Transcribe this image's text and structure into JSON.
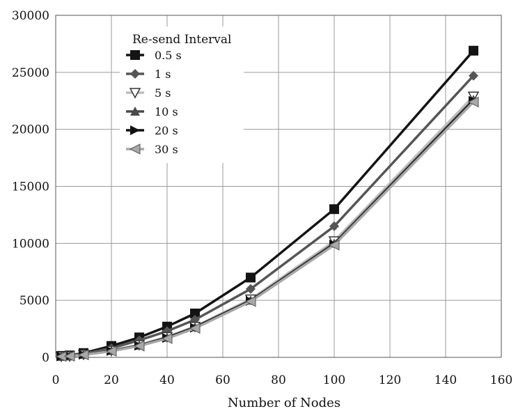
{
  "chart_data": {
    "type": "line",
    "title": "",
    "xlabel": "Number of Nodes",
    "ylabel": "",
    "xlim": [
      0,
      160
    ],
    "ylim": [
      0,
      30000
    ],
    "xticks": [
      0,
      20,
      40,
      60,
      80,
      100,
      120,
      140,
      160
    ],
    "yticks": [
      0,
      5000,
      10000,
      15000,
      20000,
      25000,
      30000
    ],
    "grid": true,
    "legend": {
      "title": "Re-send Interval",
      "position": "top-left"
    },
    "series": [
      {
        "name": "0.5 s",
        "color": "#141414",
        "marker": "square",
        "x": [
          2,
          5,
          10,
          20,
          30,
          40,
          50,
          70,
          100,
          150
        ],
        "y": [
          130,
          170,
          380,
          1000,
          1750,
          2700,
          3850,
          7000,
          13000,
          26900
        ]
      },
      {
        "name": "1 s",
        "color": "#555555",
        "marker": "diamond",
        "x": [
          2,
          5,
          10,
          20,
          30,
          40,
          50,
          70,
          100,
          150
        ],
        "y": [
          110,
          140,
          320,
          800,
          1500,
          2300,
          3300,
          6000,
          11500,
          24700
        ]
      },
      {
        "name": "5 s",
        "color": "#bdbdbd",
        "marker": "triangle-down",
        "x": [
          2,
          5,
          10,
          20,
          30,
          40,
          50,
          70,
          100,
          150
        ],
        "y": [
          90,
          110,
          250,
          600,
          1100,
          1800,
          2700,
          5100,
          10200,
          22900
        ]
      },
      {
        "name": "10 s",
        "color": "#4a4a4a",
        "marker": "triangle-up",
        "x": [
          2,
          5,
          10,
          20,
          30,
          40,
          50,
          70,
          100,
          150
        ],
        "y": [
          90,
          110,
          240,
          580,
          1050,
          1750,
          2650,
          5000,
          10000,
          22600
        ]
      },
      {
        "name": "20 s",
        "color": "#111111",
        "marker": "triangle-right",
        "x": [
          2,
          5,
          10,
          20,
          30,
          40,
          50,
          70,
          100,
          150
        ],
        "y": [
          85,
          105,
          230,
          560,
          1020,
          1700,
          2600,
          4950,
          9900,
          22500
        ]
      },
      {
        "name": "30 s",
        "color": "#a8a8a8",
        "marker": "triangle-left",
        "x": [
          2,
          5,
          10,
          20,
          30,
          40,
          50,
          70,
          100,
          150
        ],
        "y": [
          80,
          100,
          220,
          540,
          1000,
          1650,
          2550,
          4900,
          9850,
          22400
        ]
      }
    ]
  }
}
